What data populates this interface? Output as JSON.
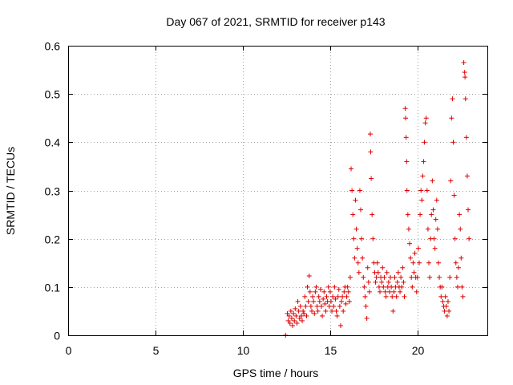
{
  "chart_data": {
    "type": "scatter",
    "title": "Day 067 of 2021, SRMTID for receiver p143",
    "xlabel": "GPS time / hours",
    "ylabel": "SRMTID / TECUs",
    "xlim": [
      0,
      24
    ],
    "ylim": [
      0,
      0.6
    ],
    "xticks": [
      0,
      5,
      10,
      15,
      20
    ],
    "xtick_labels": [
      "0",
      "5",
      "10",
      "15",
      "20"
    ],
    "yticks": [
      0,
      0.1,
      0.2,
      0.3,
      0.4,
      0.5,
      0.6
    ],
    "ytick_labels": [
      "0",
      "0.1",
      "0.2",
      "0.3",
      "0.4",
      "0.5",
      "0.6"
    ],
    "grid": true,
    "marker": "plus",
    "color": "#dd0000",
    "series": [
      {
        "name": "SRMTID",
        "points": [
          [
            12.45,
            0.0
          ],
          [
            12.55,
            0.045
          ],
          [
            12.6,
            0.03
          ],
          [
            12.65,
            0.04
          ],
          [
            12.7,
            0.025
          ],
          [
            12.75,
            0.05
          ],
          [
            12.8,
            0.035
          ],
          [
            12.85,
            0.02
          ],
          [
            12.9,
            0.045
          ],
          [
            12.95,
            0.03
          ],
          [
            13.0,
            0.055
          ],
          [
            13.05,
            0.04
          ],
          [
            13.1,
            0.025
          ],
          [
            13.15,
            0.07
          ],
          [
            13.2,
            0.05
          ],
          [
            13.25,
            0.035
          ],
          [
            13.3,
            0.06
          ],
          [
            13.35,
            0.04
          ],
          [
            13.4,
            0.03
          ],
          [
            13.45,
            0.05
          ],
          [
            13.5,
            0.045
          ],
          [
            13.55,
            0.08
          ],
          [
            13.6,
            0.06
          ],
          [
            13.65,
            0.04
          ],
          [
            13.7,
            0.1
          ],
          [
            13.75,
            0.07
          ],
          [
            13.8,
            0.123
          ],
          [
            13.85,
            0.09
          ],
          [
            13.9,
            0.06
          ],
          [
            13.95,
            0.05
          ],
          [
            14.0,
            0.08
          ],
          [
            14.05,
            0.07
          ],
          [
            14.1,
            0.045
          ],
          [
            14.15,
            0.09
          ],
          [
            14.2,
            0.1
          ],
          [
            14.25,
            0.06
          ],
          [
            14.3,
            0.05
          ],
          [
            14.35,
            0.08
          ],
          [
            14.4,
            0.07
          ],
          [
            14.45,
            0.095
          ],
          [
            14.5,
            0.06
          ],
          [
            14.55,
            0.04
          ],
          [
            14.6,
            0.075
          ],
          [
            14.65,
            0.09
          ],
          [
            14.7,
            0.065
          ],
          [
            14.75,
            0.05
          ],
          [
            14.8,
            0.08
          ],
          [
            14.85,
            0.07
          ],
          [
            14.9,
            0.1
          ],
          [
            14.95,
            0.06
          ],
          [
            15.0,
            0.09
          ],
          [
            15.05,
            0.07
          ],
          [
            15.1,
            0.05
          ],
          [
            15.15,
            0.08
          ],
          [
            15.2,
            0.06
          ],
          [
            15.25,
            0.1
          ],
          [
            15.3,
            0.075
          ],
          [
            15.35,
            0.05
          ],
          [
            15.4,
            0.04
          ],
          [
            15.45,
            0.08
          ],
          [
            15.5,
            0.095
          ],
          [
            15.55,
            0.06
          ],
          [
            15.6,
            0.02
          ],
          [
            15.65,
            0.07
          ],
          [
            15.7,
            0.08
          ],
          [
            15.75,
            0.05
          ],
          [
            15.8,
            0.09
          ],
          [
            15.85,
            0.1
          ],
          [
            15.9,
            0.065
          ],
          [
            15.95,
            0.08
          ],
          [
            16.0,
            0.1
          ],
          [
            16.05,
            0.09
          ],
          [
            16.1,
            0.07
          ],
          [
            16.15,
            0.12
          ],
          [
            16.2,
            0.345
          ],
          [
            16.25,
            0.3
          ],
          [
            16.3,
            0.25
          ],
          [
            16.35,
            0.2
          ],
          [
            16.4,
            0.16
          ],
          [
            16.45,
            0.28
          ],
          [
            16.5,
            0.22
          ],
          [
            16.55,
            0.18
          ],
          [
            16.6,
            0.15
          ],
          [
            16.65,
            0.13
          ],
          [
            16.7,
            0.3
          ],
          [
            16.75,
            0.26
          ],
          [
            16.8,
            0.2
          ],
          [
            16.85,
            0.16
          ],
          [
            16.9,
            0.12
          ],
          [
            16.95,
            0.1
          ],
          [
            17.0,
            0.08
          ],
          [
            17.05,
            0.06
          ],
          [
            17.1,
            0.035
          ],
          [
            17.15,
            0.14
          ],
          [
            17.2,
            0.11
          ],
          [
            17.25,
            0.09
          ],
          [
            17.3,
            0.417
          ],
          [
            17.32,
            0.38
          ],
          [
            17.35,
            0.325
          ],
          [
            17.4,
            0.25
          ],
          [
            17.45,
            0.2
          ],
          [
            17.5,
            0.15
          ],
          [
            17.55,
            0.13
          ],
          [
            17.6,
            0.11
          ],
          [
            17.65,
            0.12
          ],
          [
            17.7,
            0.15
          ],
          [
            17.75,
            0.13
          ],
          [
            17.8,
            0.1
          ],
          [
            17.85,
            0.09
          ],
          [
            17.9,
            0.12
          ],
          [
            17.95,
            0.11
          ],
          [
            18.0,
            0.14
          ],
          [
            18.05,
            0.1
          ],
          [
            18.1,
            0.12
          ],
          [
            18.15,
            0.09
          ],
          [
            18.2,
            0.08
          ],
          [
            18.25,
            0.13
          ],
          [
            18.3,
            0.1
          ],
          [
            18.35,
            0.11
          ],
          [
            18.4,
            0.09
          ],
          [
            18.45,
            0.12
          ],
          [
            18.5,
            0.1
          ],
          [
            18.55,
            0.08
          ],
          [
            18.6,
            0.05
          ],
          [
            18.65,
            0.09
          ],
          [
            18.7,
            0.12
          ],
          [
            18.75,
            0.1
          ],
          [
            18.8,
            0.08
          ],
          [
            18.85,
            0.11
          ],
          [
            18.9,
            0.13
          ],
          [
            18.95,
            0.1
          ],
          [
            19.0,
            0.09
          ],
          [
            19.05,
            0.12
          ],
          [
            19.1,
            0.1
          ],
          [
            19.15,
            0.14
          ],
          [
            19.2,
            0.11
          ],
          [
            19.25,
            0.08
          ],
          [
            19.3,
            0.47
          ],
          [
            19.32,
            0.45
          ],
          [
            19.35,
            0.41
          ],
          [
            19.38,
            0.36
          ],
          [
            19.4,
            0.3
          ],
          [
            19.45,
            0.25
          ],
          [
            19.5,
            0.22
          ],
          [
            19.55,
            0.19
          ],
          [
            19.6,
            0.16
          ],
          [
            19.65,
            0.12
          ],
          [
            19.7,
            0.1
          ],
          [
            19.75,
            0.15
          ],
          [
            19.8,
            0.13
          ],
          [
            19.85,
            0.17
          ],
          [
            19.9,
            0.12
          ],
          [
            19.95,
            0.09
          ],
          [
            20.0,
            0.12
          ],
          [
            20.05,
            0.18
          ],
          [
            20.1,
            0.15
          ],
          [
            20.15,
            0.25
          ],
          [
            20.2,
            0.3
          ],
          [
            20.25,
            0.28
          ],
          [
            20.3,
            0.33
          ],
          [
            20.35,
            0.36
          ],
          [
            20.4,
            0.4
          ],
          [
            20.45,
            0.44
          ],
          [
            20.5,
            0.45
          ],
          [
            20.55,
            0.3
          ],
          [
            20.6,
            0.22
          ],
          [
            20.65,
            0.15
          ],
          [
            20.7,
            0.12
          ],
          [
            20.75,
            0.2
          ],
          [
            20.8,
            0.25
          ],
          [
            20.85,
            0.32
          ],
          [
            20.9,
            0.26
          ],
          [
            20.95,
            0.2
          ],
          [
            21.0,
            0.18
          ],
          [
            21.05,
            0.24
          ],
          [
            21.1,
            0.28
          ],
          [
            21.15,
            0.22
          ],
          [
            21.2,
            0.15
          ],
          [
            21.25,
            0.12
          ],
          [
            21.3,
            0.1
          ],
          [
            21.35,
            0.08
          ],
          [
            21.4,
            0.1
          ],
          [
            21.45,
            0.07
          ],
          [
            21.5,
            0.06
          ],
          [
            21.55,
            0.05
          ],
          [
            21.6,
            0.08
          ],
          [
            21.65,
            0.06
          ],
          [
            21.7,
            0.04
          ],
          [
            21.75,
            0.07
          ],
          [
            21.8,
            0.05
          ],
          [
            21.85,
            0.12
          ],
          [
            21.9,
            0.32
          ],
          [
            21.95,
            0.45
          ],
          [
            22.0,
            0.49
          ],
          [
            22.05,
            0.4
          ],
          [
            22.1,
            0.29
          ],
          [
            22.15,
            0.2
          ],
          [
            22.2,
            0.15
          ],
          [
            22.25,
            0.12
          ],
          [
            22.3,
            0.1
          ],
          [
            22.35,
            0.14
          ],
          [
            22.4,
            0.25
          ],
          [
            22.45,
            0.22
          ],
          [
            22.5,
            0.16
          ],
          [
            22.55,
            0.1
          ],
          [
            22.6,
            0.08
          ],
          [
            22.65,
            0.565
          ],
          [
            22.7,
            0.545
          ],
          [
            22.72,
            0.535
          ],
          [
            22.75,
            0.49
          ],
          [
            22.8,
            0.41
          ],
          [
            22.85,
            0.33
          ],
          [
            22.9,
            0.26
          ],
          [
            22.95,
            0.2
          ]
        ]
      }
    ]
  }
}
